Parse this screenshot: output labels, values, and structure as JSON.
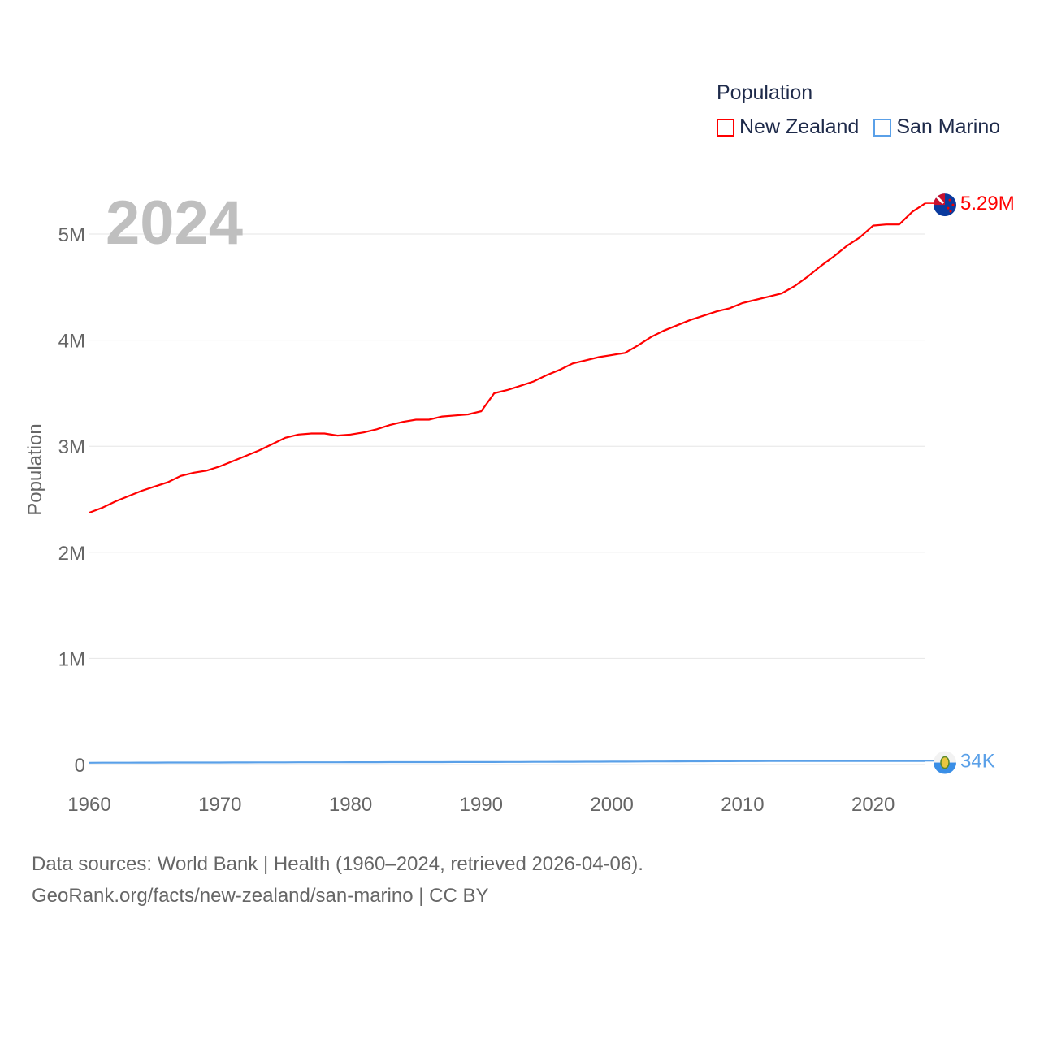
{
  "chart_data": {
    "type": "line",
    "title": "Population",
    "ylabel": "Population",
    "xlabel": "",
    "year_watermark": "2024",
    "ylim": [
      0,
      5000000
    ],
    "xlim": [
      1960,
      2024
    ],
    "y_ticks": [
      {
        "value": 0,
        "label": "0"
      },
      {
        "value": 1000000,
        "label": "1M"
      },
      {
        "value": 2000000,
        "label": "2M"
      },
      {
        "value": 3000000,
        "label": "3M"
      },
      {
        "value": 4000000,
        "label": "4M"
      },
      {
        "value": 5000000,
        "label": "5M"
      }
    ],
    "x_ticks": [
      {
        "value": 1960,
        "label": "1960"
      },
      {
        "value": 1970,
        "label": "1970"
      },
      {
        "value": 1980,
        "label": "1980"
      },
      {
        "value": 1990,
        "label": "1990"
      },
      {
        "value": 2000,
        "label": "2000"
      },
      {
        "value": 2010,
        "label": "2010"
      },
      {
        "value": 2020,
        "label": "2020"
      }
    ],
    "grid": true,
    "legend_position": "top-right",
    "x": [
      1960,
      1961,
      1962,
      1963,
      1964,
      1965,
      1966,
      1967,
      1968,
      1969,
      1970,
      1971,
      1972,
      1973,
      1974,
      1975,
      1976,
      1977,
      1978,
      1979,
      1980,
      1981,
      1982,
      1983,
      1984,
      1985,
      1986,
      1987,
      1988,
      1989,
      1990,
      1991,
      1992,
      1993,
      1994,
      1995,
      1996,
      1997,
      1998,
      1999,
      2000,
      2001,
      2002,
      2003,
      2004,
      2005,
      2006,
      2007,
      2008,
      2009,
      2010,
      2011,
      2012,
      2013,
      2014,
      2015,
      2016,
      2017,
      2018,
      2019,
      2020,
      2021,
      2022,
      2023,
      2024
    ],
    "series": [
      {
        "name": "New Zealand",
        "color": "#ff0000",
        "end_label": "5.29M",
        "flag": "new-zealand-flag",
        "values": [
          2374000,
          2420000,
          2480000,
          2530000,
          2580000,
          2620000,
          2660000,
          2720000,
          2750000,
          2770000,
          2810000,
          2860000,
          2910000,
          2960000,
          3020000,
          3080000,
          3110000,
          3120000,
          3120000,
          3100000,
          3110000,
          3130000,
          3160000,
          3200000,
          3230000,
          3250000,
          3250000,
          3280000,
          3290000,
          3300000,
          3330000,
          3500000,
          3530000,
          3570000,
          3610000,
          3670000,
          3720000,
          3780000,
          3810000,
          3840000,
          3860000,
          3880000,
          3950000,
          4030000,
          4090000,
          4140000,
          4190000,
          4230000,
          4270000,
          4300000,
          4350000,
          4380000,
          4410000,
          4440000,
          4510000,
          4600000,
          4700000,
          4790000,
          4890000,
          4970000,
          5080000,
          5090000,
          5090000,
          5210000,
          5290000
        ]
      },
      {
        "name": "San Marino",
        "color": "#5aa0e8",
        "end_label": "34K",
        "flag": "san-marino-flag",
        "values": [
          17000,
          17300,
          17600,
          17900,
          18200,
          18500,
          18800,
          19000,
          19200,
          19300,
          19400,
          19700,
          20000,
          20300,
          20600,
          20900,
          21100,
          21300,
          21500,
          21800,
          22000,
          22200,
          22400,
          22600,
          22800,
          23000,
          23200,
          23300,
          23500,
          23700,
          23800,
          24000,
          24300,
          24700,
          25100,
          25500,
          25900,
          26300,
          26700,
          27000,
          27400,
          27800,
          28300,
          28800,
          29300,
          29800,
          30300,
          30800,
          31300,
          31700,
          32100,
          32400,
          32700,
          33000,
          33200,
          33300,
          33400,
          33600,
          33700,
          33800,
          34000,
          34000,
          33900,
          33900,
          34000
        ]
      }
    ]
  },
  "legend": {
    "title": "Population",
    "items": [
      {
        "label": "New Zealand",
        "color": "#ff0000"
      },
      {
        "label": "San Marino",
        "color": "#5aa0e8"
      }
    ]
  },
  "footer": {
    "line1": "Data sources: World Bank | Health (1960–2024, retrieved 2026-04-06).",
    "line2": "GeoRank.org/facts/new-zealand/san-marino | CC BY"
  }
}
